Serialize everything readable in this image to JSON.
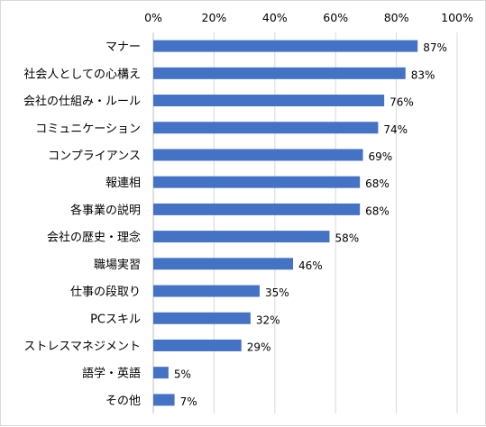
{
  "chart_data": {
    "type": "bar",
    "orientation": "horizontal",
    "categories": [
      "マナー",
      "社会人としての心構え",
      "会社の仕組み・ルール",
      "コミュニケーション",
      "コンプライアンス",
      "報連相",
      "各事業の説明",
      "会社の歴史・理念",
      "職場実習",
      "仕事の段取り",
      "PCスキル",
      "ストレスマネジメント",
      "語学・英語",
      "その他"
    ],
    "values": [
      87,
      83,
      76,
      74,
      69,
      68,
      68,
      58,
      46,
      35,
      32,
      29,
      5,
      7
    ],
    "data_labels": [
      "87%",
      "83%",
      "76%",
      "74%",
      "69%",
      "68%",
      "68%",
      "58%",
      "46%",
      "35%",
      "32%",
      "29%",
      "5%",
      "7%"
    ],
    "x_ticks": [
      "0%",
      "20%",
      "40%",
      "60%",
      "80%",
      "100%"
    ],
    "x_tick_values": [
      0,
      20,
      40,
      60,
      80,
      100
    ],
    "xlim": [
      0,
      100
    ],
    "x_axis_position": "top",
    "grid": true,
    "legend": "none",
    "bar_color": "#4472c4",
    "grid_color": "#d9d9d9",
    "title": "",
    "xlabel": "",
    "ylabel": ""
  }
}
